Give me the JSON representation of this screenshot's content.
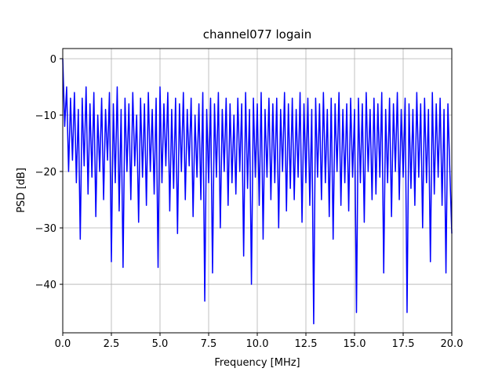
{
  "chart_data": {
    "type": "line",
    "title": "channel077 logain",
    "xlabel": "Frequency [MHz]",
    "ylabel": "PSD [dB]",
    "x": [
      0,
      0.1,
      0.2,
      0.3,
      0.4,
      0.5,
      0.6,
      0.7,
      0.8,
      0.9,
      1,
      1.1,
      1.2,
      1.3,
      1.4,
      1.5,
      1.6,
      1.7,
      1.8,
      1.9,
      2,
      2.1,
      2.2,
      2.3,
      2.4,
      2.5,
      2.6,
      2.7,
      2.8,
      2.9,
      3,
      3.1,
      3.2,
      3.3,
      3.4,
      3.5,
      3.6,
      3.7,
      3.8,
      3.9,
      4,
      4.1,
      4.2,
      4.3,
      4.4,
      4.5,
      4.6,
      4.7,
      4.8,
      4.9,
      5,
      5.1,
      5.2,
      5.3,
      5.4,
      5.5,
      5.6,
      5.7,
      5.8,
      5.9,
      6,
      6.1,
      6.2,
      6.3,
      6.4,
      6.5,
      6.6,
      6.7,
      6.8,
      6.9,
      7,
      7.1,
      7.2,
      7.3,
      7.4,
      7.5,
      7.6,
      7.7,
      7.8,
      7.9,
      8,
      8.1,
      8.2,
      8.3,
      8.4,
      8.5,
      8.6,
      8.7,
      8.8,
      8.9,
      9,
      9.1,
      9.2,
      9.3,
      9.4,
      9.5,
      9.6,
      9.7,
      9.8,
      9.9,
      10,
      10.1,
      10.2,
      10.3,
      10.4,
      10.5,
      10.6,
      10.7,
      10.8,
      10.9,
      11,
      11.1,
      11.2,
      11.3,
      11.4,
      11.5,
      11.6,
      11.7,
      11.8,
      11.9,
      12,
      12.1,
      12.2,
      12.3,
      12.4,
      12.5,
      12.6,
      12.7,
      12.8,
      12.9,
      13,
      13.1,
      13.2,
      13.3,
      13.4,
      13.5,
      13.6,
      13.7,
      13.8,
      13.9,
      14,
      14.1,
      14.2,
      14.3,
      14.4,
      14.5,
      14.6,
      14.7,
      14.8,
      14.9,
      15,
      15.1,
      15.2,
      15.3,
      15.4,
      15.5,
      15.6,
      15.7,
      15.8,
      15.9,
      16,
      16.1,
      16.2,
      16.3,
      16.4,
      16.5,
      16.6,
      16.7,
      16.8,
      16.9,
      17,
      17.1,
      17.2,
      17.3,
      17.4,
      17.5,
      17.6,
      17.7,
      17.8,
      17.9,
      18,
      18.1,
      18.2,
      18.3,
      18.4,
      18.5,
      18.6,
      18.7,
      18.8,
      18.9,
      19,
      19.1,
      19.2,
      19.3,
      19.4,
      19.5,
      19.6,
      19.7,
      19.8,
      19.9,
      20
    ],
    "series": [
      {
        "color": "#0000ff",
        "values": [
          0,
          -12,
          -5,
          -20,
          -7,
          -18,
          -6,
          -22,
          -9,
          -32,
          -7,
          -19,
          -5,
          -24,
          -8,
          -21,
          -6,
          -28,
          -10,
          -20,
          -7,
          -25,
          -9,
          -18,
          -6,
          -36,
          -8,
          -22,
          -5,
          -27,
          -9,
          -37,
          -7,
          -20,
          -8,
          -25,
          -6,
          -19,
          -10,
          -29,
          -7,
          -21,
          -8,
          -26,
          -6,
          -20,
          -9,
          -24,
          -7,
          -37,
          -5,
          -22,
          -8,
          -19,
          -6,
          -27,
          -9,
          -23,
          -7,
          -31,
          -8,
          -20,
          -6,
          -25,
          -9,
          -19,
          -7,
          -28,
          -10,
          -21,
          -8,
          -25,
          -6,
          -43,
          -9,
          -22,
          -7,
          -38,
          -8,
          -21,
          -6,
          -30,
          -9,
          -20,
          -7,
          -26,
          -8,
          -22,
          -10,
          -24,
          -7,
          -20,
          -8,
          -35,
          -6,
          -23,
          -9,
          -40,
          -7,
          -21,
          -8,
          -26,
          -6,
          -32,
          -9,
          -21,
          -7,
          -25,
          -8,
          -22,
          -7,
          -30,
          -9,
          -20,
          -6,
          -27,
          -8,
          -23,
          -7,
          -25,
          -9,
          -21,
          -6,
          -29,
          -8,
          -22,
          -7,
          -26,
          -9,
          -47,
          -7,
          -21,
          -8,
          -25,
          -6,
          -22,
          -9,
          -28,
          -7,
          -32,
          -8,
          -20,
          -6,
          -26,
          -9,
          -22,
          -8,
          -27,
          -7,
          -21,
          -9,
          -45,
          -7,
          -22,
          -8,
          -29,
          -6,
          -20,
          -9,
          -25,
          -7,
          -24,
          -8,
          -21,
          -6,
          -38,
          -9,
          -22,
          -7,
          -28,
          -8,
          -20,
          -6,
          -25,
          -9,
          -21,
          -7,
          -45,
          -8,
          -23,
          -9,
          -26,
          -6,
          -21,
          -8,
          -30,
          -7,
          -22,
          -9,
          -36,
          -6,
          -24,
          -8,
          -21,
          -7,
          -26,
          -9,
          -38,
          -8,
          -20,
          -31
        ]
      }
    ],
    "xlim": [
      0,
      20
    ],
    "ylim": [
      -48.6,
      1.8
    ],
    "xticks": [
      {
        "value": 0,
        "label": "0.0"
      },
      {
        "value": 2.5,
        "label": "2.5"
      },
      {
        "value": 5,
        "label": "5.0"
      },
      {
        "value": 7.5,
        "label": "7.5"
      },
      {
        "value": 10,
        "label": "10.0"
      },
      {
        "value": 12.5,
        "label": "12.5"
      },
      {
        "value": 15,
        "label": "15.0"
      },
      {
        "value": 17.5,
        "label": "17.5"
      },
      {
        "value": 20,
        "label": "20.0"
      }
    ],
    "yticks": [
      {
        "value": -40,
        "label": "−40"
      },
      {
        "value": -30,
        "label": "−30"
      },
      {
        "value": -20,
        "label": "−20"
      },
      {
        "value": -10,
        "label": "−10"
      },
      0
    ],
    "grid": true
  }
}
